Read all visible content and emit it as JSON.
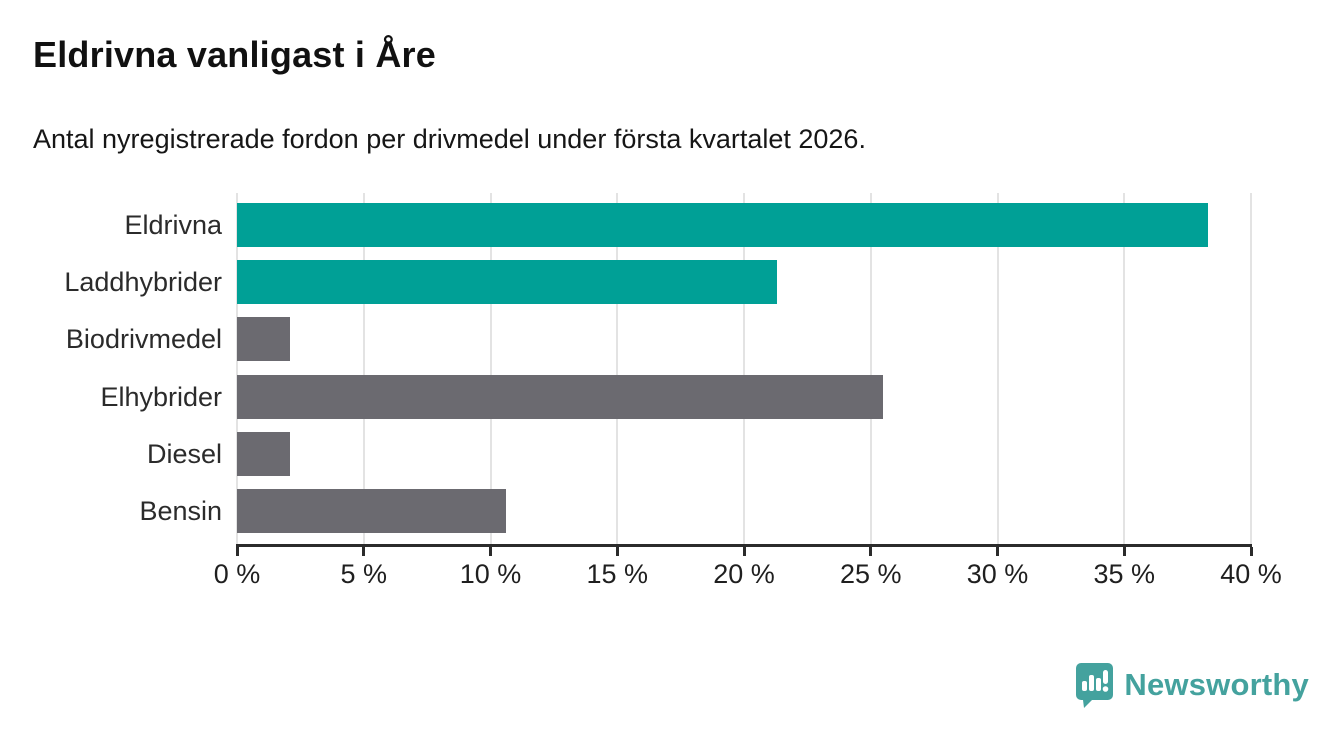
{
  "header": {
    "title": "Eldrivna vanligast i Åre",
    "subtitle": "Antal nyregistrerade fordon per drivmedel under första kvartalet 2026."
  },
  "chart_data": {
    "type": "bar",
    "orientation": "horizontal",
    "title": "Eldrivna vanligast i Åre",
    "subtitle": "Antal nyregistrerade fordon per drivmedel under första kvartalet 2026.",
    "categories": [
      "Eldrivna",
      "Laddhybrider",
      "Biodrivmedel",
      "Elhybrider",
      "Diesel",
      "Bensin"
    ],
    "values": [
      38.3,
      21.3,
      2.1,
      25.5,
      2.1,
      10.6
    ],
    "unit": "%",
    "bar_colors": [
      "#00a096",
      "#00a096",
      "#6b6a70",
      "#6b6a70",
      "#6b6a70",
      "#6b6a70"
    ],
    "xlim": [
      0,
      40
    ],
    "x_ticks": [
      0,
      5,
      10,
      15,
      20,
      25,
      30,
      35,
      40
    ],
    "x_tick_labels": [
      "0 %",
      "5 %",
      "10 %",
      "15 %",
      "20 %",
      "25 %",
      "30 %",
      "35 %",
      "40 %"
    ],
    "grid": true,
    "legend": "none"
  },
  "branding": {
    "logo_text": "Newsworthy",
    "logo_icon": "newsworthy-bubble-bar-chart-icon",
    "logo_color": "#44a29e"
  },
  "colors": {
    "accent_teal": "#00a096",
    "neutral_gray": "#6b6a70",
    "grid": "#e3e3e3",
    "axis": "#2b2b2b",
    "text": "#1f1f1f",
    "background": "#ffffff"
  }
}
